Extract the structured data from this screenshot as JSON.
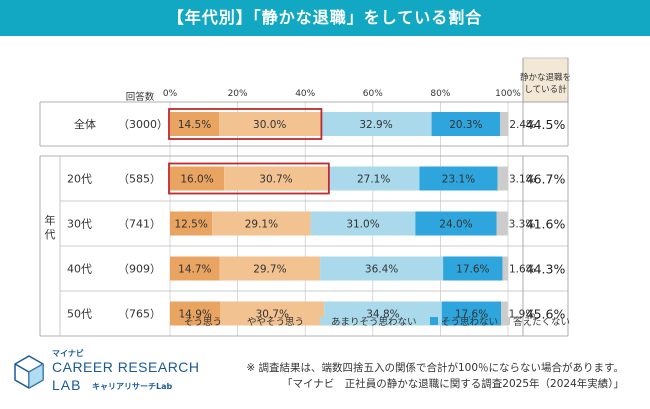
{
  "title": "【年代別】「静かな退職」をしている割合",
  "right_header": [
    "静かな退職を",
    "している計"
  ],
  "respondents_label": "回答数",
  "group_label": "年代",
  "chart_data": {
    "type": "bar",
    "orientation": "horizontal",
    "stacked": true,
    "percent_scale": true,
    "xlim": [
      0,
      100
    ],
    "ticks": [
      "0%",
      "20%",
      "40%",
      "60%",
      "80%",
      "100%"
    ],
    "rows": [
      {
        "label": "全体",
        "n": "（3000）",
        "values": [
          14.5,
          30.0,
          32.9,
          20.3,
          2.4
        ],
        "labels": [
          "14.5%",
          "30.0%",
          "32.9%",
          "20.3%",
          "2.4%"
        ],
        "total": "44.5%",
        "highlight": true
      },
      {
        "label": "20代",
        "n": "（585）",
        "values": [
          16.0,
          30.7,
          27.1,
          23.1,
          3.1
        ],
        "labels": [
          "16.0%",
          "30.7%",
          "27.1%",
          "23.1%",
          "3.1%"
        ],
        "total": "46.7%",
        "highlight": true
      },
      {
        "label": "30代",
        "n": "（741）",
        "values": [
          12.5,
          29.1,
          31.0,
          24.0,
          3.3
        ],
        "labels": [
          "12.5%",
          "29.1%",
          "31.0%",
          "24.0%",
          "3.3%"
        ],
        "total": "41.6%",
        "highlight": false
      },
      {
        "label": "40代",
        "n": "（909）",
        "values": [
          14.7,
          29.7,
          36.4,
          17.6,
          1.6
        ],
        "labels": [
          "14.7%",
          "29.7%",
          "36.4%",
          "17.6%",
          "1.6%"
        ],
        "total": "44.3%",
        "highlight": false
      },
      {
        "label": "50代",
        "n": "（765）",
        "values": [
          14.9,
          30.7,
          34.8,
          17.6,
          1.9
        ],
        "labels": [
          "14.9%",
          "30.7%",
          "34.8%",
          "17.6%",
          "1.9%"
        ],
        "total": "45.6%",
        "highlight": false
      }
    ],
    "series": [
      {
        "name": "そう思う",
        "color": "#e8a460"
      },
      {
        "name": "ややそう思う",
        "color": "#f2c291"
      },
      {
        "name": "あまりそう思わない",
        "color": "#a9d9ea"
      },
      {
        "name": "そう思わない",
        "color": "#2ea5dc"
      },
      {
        "name": "答えたくない",
        "color": "#cccccc"
      }
    ],
    "grid": true,
    "legend_position": "bottom"
  },
  "colors": {
    "title_bg": "#12a8c4",
    "highlight_border": "#c0282d",
    "total_header_bg": "#f3e7d6"
  },
  "footnote": {
    "line1": "※ 調査結果は、端数四捨五入の関係で合計が100％にならない場合があります。",
    "line2": "「マイナビ　正社員の静かな退職に関する調査2025年（2024年実績）」"
  },
  "logo": {
    "maker": "マイナビ",
    "line1": "CAREER RESEARCH",
    "line2": "LAB",
    "sub": "キャリアリサーチLab"
  }
}
